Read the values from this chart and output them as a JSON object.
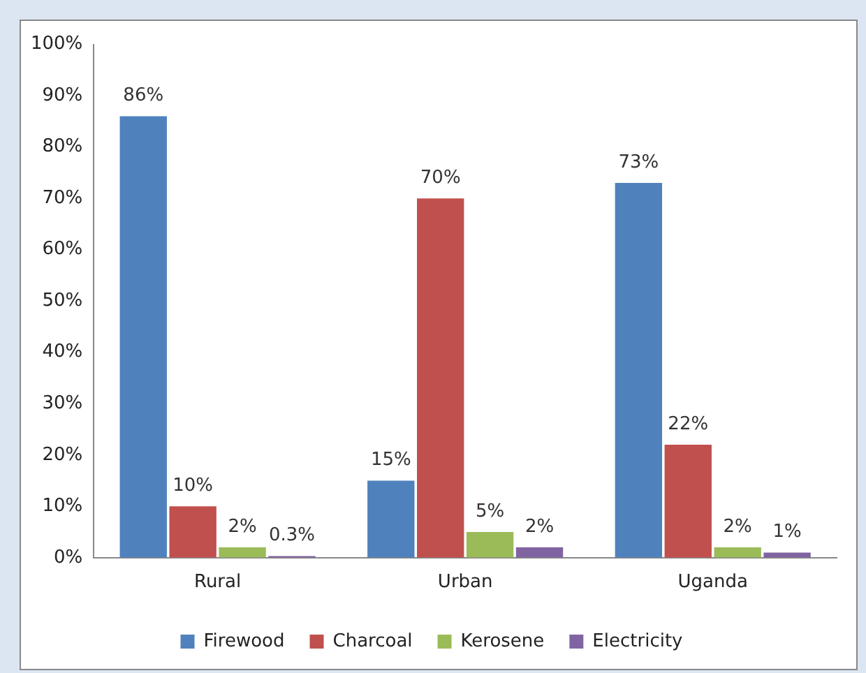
{
  "chart_data": {
    "type": "bar",
    "categories": [
      "Rural",
      "Urban",
      "Uganda"
    ],
    "series": [
      {
        "name": "Firewood",
        "color": "#4f81bd",
        "values": [
          86,
          15,
          73
        ],
        "value_labels": [
          "86%",
          "15%",
          "73%"
        ]
      },
      {
        "name": "Charcoal",
        "color": "#c0504d",
        "values": [
          10,
          70,
          22
        ],
        "value_labels": [
          "10%",
          "70%",
          "22%"
        ]
      },
      {
        "name": "Kerosene",
        "color": "#9bbb59",
        "values": [
          2,
          5,
          2
        ],
        "value_labels": [
          "2%",
          "5%",
          "2%"
        ]
      },
      {
        "name": "Electricity",
        "color": "#8064a2",
        "values": [
          0.3,
          2,
          1
        ],
        "value_labels": [
          "0.3%",
          "2%",
          "1%"
        ]
      }
    ],
    "ylim": [
      0,
      100
    ],
    "yticks": [
      {
        "value": 0,
        "label": "0%"
      },
      {
        "value": 10,
        "label": "10%"
      },
      {
        "value": 20,
        "label": "20%"
      },
      {
        "value": 30,
        "label": "30%"
      },
      {
        "value": 40,
        "label": "40%"
      },
      {
        "value": 50,
        "label": "50%"
      },
      {
        "value": 60,
        "label": "60%"
      },
      {
        "value": 70,
        "label": "70%"
      },
      {
        "value": 80,
        "label": "80%"
      },
      {
        "value": 90,
        "label": "90%"
      },
      {
        "value": 100,
        "label": "100%"
      }
    ],
    "grid": false,
    "legend": "bottom"
  }
}
